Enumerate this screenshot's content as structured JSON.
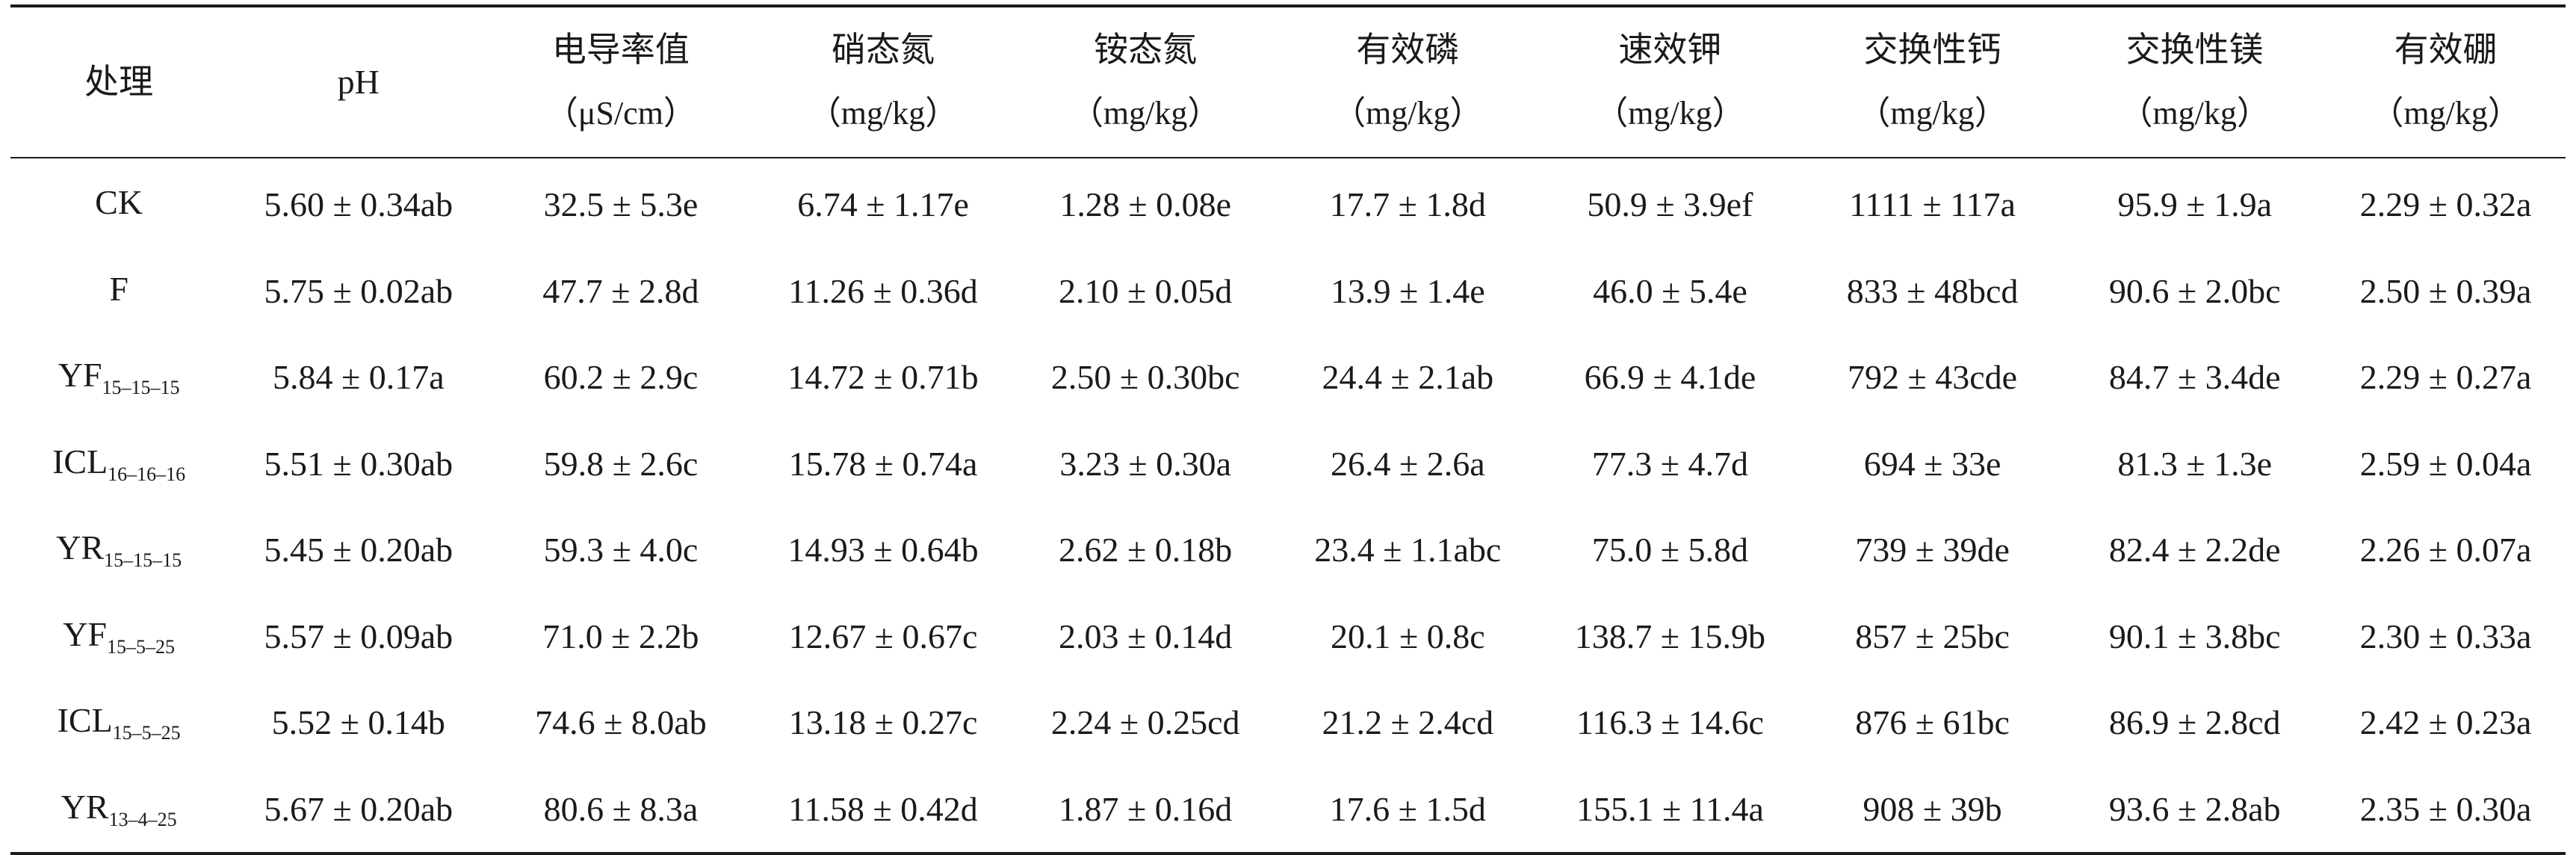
{
  "table": {
    "headers": [
      {
        "name": "处理",
        "unit": ""
      },
      {
        "name": "pH",
        "unit": ""
      },
      {
        "name": "电导率值",
        "unit": "（μS/cm）"
      },
      {
        "name": "硝态氮",
        "unit": "（mg/kg）"
      },
      {
        "name": "铵态氮",
        "unit": "（mg/kg）"
      },
      {
        "name": "有效磷",
        "unit": "（mg/kg）"
      },
      {
        "name": "速效钾",
        "unit": "（mg/kg）"
      },
      {
        "name": "交换性钙",
        "unit": "（mg/kg）"
      },
      {
        "name": "交换性镁",
        "unit": "（mg/kg）"
      },
      {
        "name": "有效硼",
        "unit": "（mg/kg）"
      }
    ],
    "rows": [
      {
        "treatment": "CK",
        "sub": "",
        "cells": [
          "5.60 ± 0.34ab",
          "32.5 ± 5.3e",
          "6.74 ± 1.17e",
          "1.28 ± 0.08e",
          "17.7 ± 1.8d",
          "50.9 ± 3.9ef",
          "1111 ± 117a",
          "95.9 ± 1.9a",
          "2.29 ± 0.32a"
        ]
      },
      {
        "treatment": "F",
        "sub": "",
        "cells": [
          "5.75 ± 0.02ab",
          "47.7 ± 2.8d",
          "11.26 ± 0.36d",
          "2.10 ± 0.05d",
          "13.9 ± 1.4e",
          "46.0 ± 5.4e",
          "833 ± 48bcd",
          "90.6 ± 2.0bc",
          "2.50 ± 0.39a"
        ]
      },
      {
        "treatment": "YF",
        "sub": "15–15–15",
        "cells": [
          "5.84 ± 0.17a",
          "60.2 ± 2.9c",
          "14.72 ± 0.71b",
          "2.50 ± 0.30bc",
          "24.4 ± 2.1ab",
          "66.9 ± 4.1de",
          "792 ± 43cde",
          "84.7 ± 3.4de",
          "2.29 ± 0.27a"
        ]
      },
      {
        "treatment": "ICL",
        "sub": "16–16–16",
        "cells": [
          "5.51 ± 0.30ab",
          "59.8 ± 2.6c",
          "15.78 ± 0.74a",
          "3.23 ± 0.30a",
          "26.4 ± 2.6a",
          "77.3 ± 4.7d",
          "694 ± 33e",
          "81.3 ± 1.3e",
          "2.59 ± 0.04a"
        ]
      },
      {
        "treatment": "YR",
        "sub": "15–15–15",
        "cells": [
          "5.45 ± 0.20ab",
          "59.3 ± 4.0c",
          "14.93 ± 0.64b",
          "2.62 ± 0.18b",
          "23.4 ± 1.1abc",
          "75.0 ± 5.8d",
          "739 ± 39de",
          "82.4 ± 2.2de",
          "2.26 ± 0.07a"
        ]
      },
      {
        "treatment": "YF",
        "sub": "15–5–25",
        "cells": [
          "5.57 ± 0.09ab",
          "71.0 ± 2.2b",
          "12.67 ± 0.67c",
          "2.03 ± 0.14d",
          "20.1 ± 0.8c",
          "138.7 ± 15.9b",
          "857 ± 25bc",
          "90.1 ± 3.8bc",
          "2.30 ± 0.33a"
        ]
      },
      {
        "treatment": "ICL",
        "sub": "15–5–25",
        "cells": [
          "5.52 ± 0.14b",
          "74.6 ± 8.0ab",
          "13.18 ± 0.27c",
          "2.24 ± 0.25cd",
          "21.2 ± 2.4cd",
          "116.3 ± 14.6c",
          "876 ± 61bc",
          "86.9 ± 2.8cd",
          "2.42 ± 0.23a"
        ]
      },
      {
        "treatment": "YR",
        "sub": "13–4–25",
        "cells": [
          "5.67 ± 0.20ab",
          "80.6 ± 8.3a",
          "11.58 ± 0.42d",
          "1.87 ± 0.16d",
          "17.6 ± 1.5d",
          "155.1 ± 11.4a",
          "908 ± 39b",
          "93.6 ± 2.8ab",
          "2.35 ± 0.30a"
        ]
      }
    ]
  }
}
